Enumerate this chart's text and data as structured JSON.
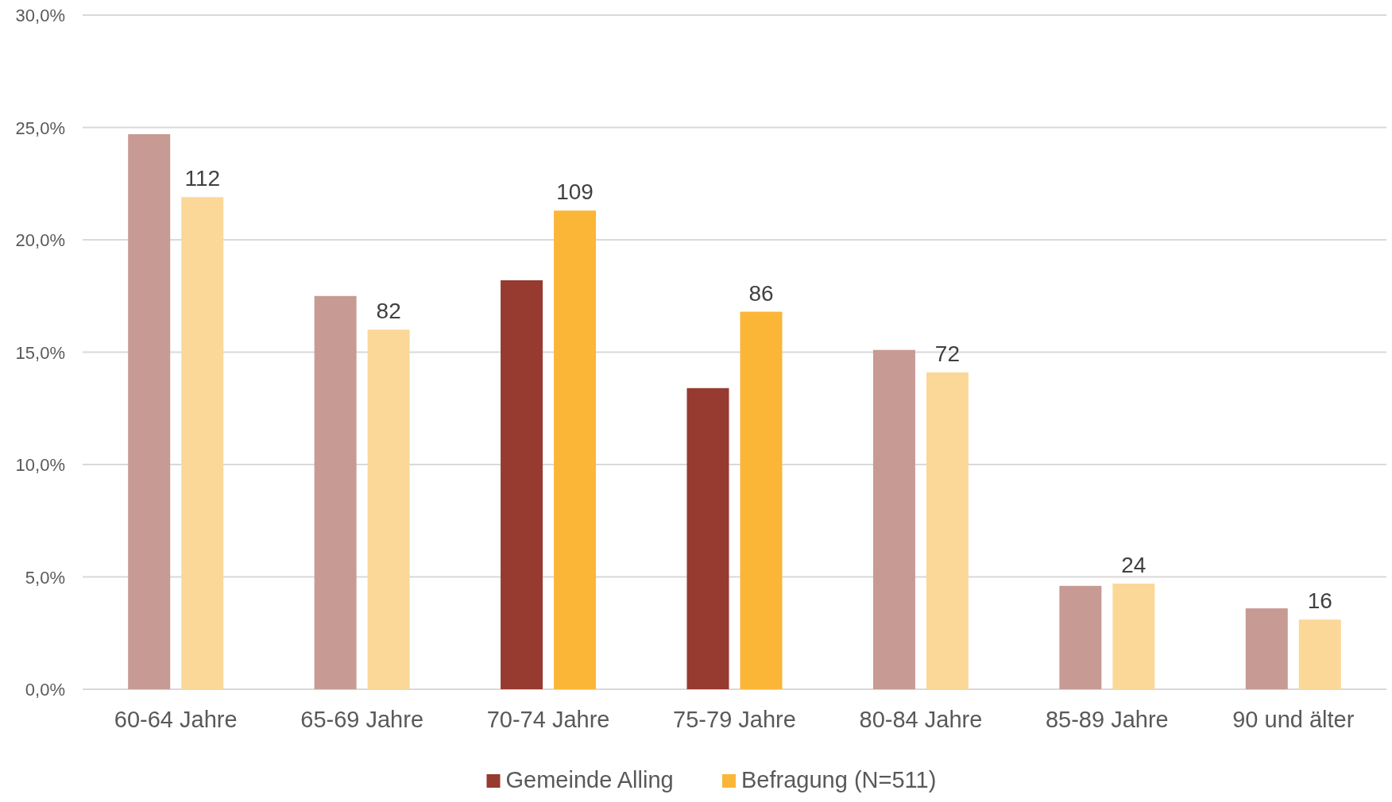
{
  "chart_data": {
    "type": "bar",
    "categories": [
      "60-64 Jahre",
      "65-69 Jahre",
      "70-74 Jahre",
      "75-79 Jahre",
      "80-84 Jahre",
      "85-89 Jahre",
      "90 und älter"
    ],
    "series": [
      {
        "name": "Gemeinde Alling",
        "color": "#973a30",
        "colors": [
          "#c89a94",
          "#c89a94",
          "#973a30",
          "#973a30",
          "#c89a94",
          "#c89a94",
          "#c89a94"
        ],
        "values": [
          24.7,
          17.5,
          18.2,
          13.4,
          15.1,
          4.6,
          3.6
        ]
      },
      {
        "name": "Befragung (N=511)",
        "color": "#fbb638",
        "colors": [
          "#fbd898",
          "#fbd898",
          "#fbb638",
          "#fbb638",
          "#fbd898",
          "#fbd898",
          "#fbd898"
        ],
        "values": [
          21.9,
          16.0,
          21.3,
          16.8,
          14.1,
          4.7,
          3.1
        ]
      }
    ],
    "annotations": [
      "112",
      "82",
      "109",
      "86",
      "72",
      "24",
      "16"
    ],
    "ylim": [
      0,
      30
    ],
    "yticks": [
      {
        "value": 0,
        "label": "0,0%"
      },
      {
        "value": 5,
        "label": "5,0%"
      },
      {
        "value": 10,
        "label": "10,0%"
      },
      {
        "value": 15,
        "label": "15,0%"
      },
      {
        "value": 20,
        "label": "20,0%"
      },
      {
        "value": 25,
        "label": "25,0%"
      },
      {
        "value": 30,
        "label": "30,0%"
      }
    ],
    "grid": "y",
    "legend": "bottom"
  }
}
